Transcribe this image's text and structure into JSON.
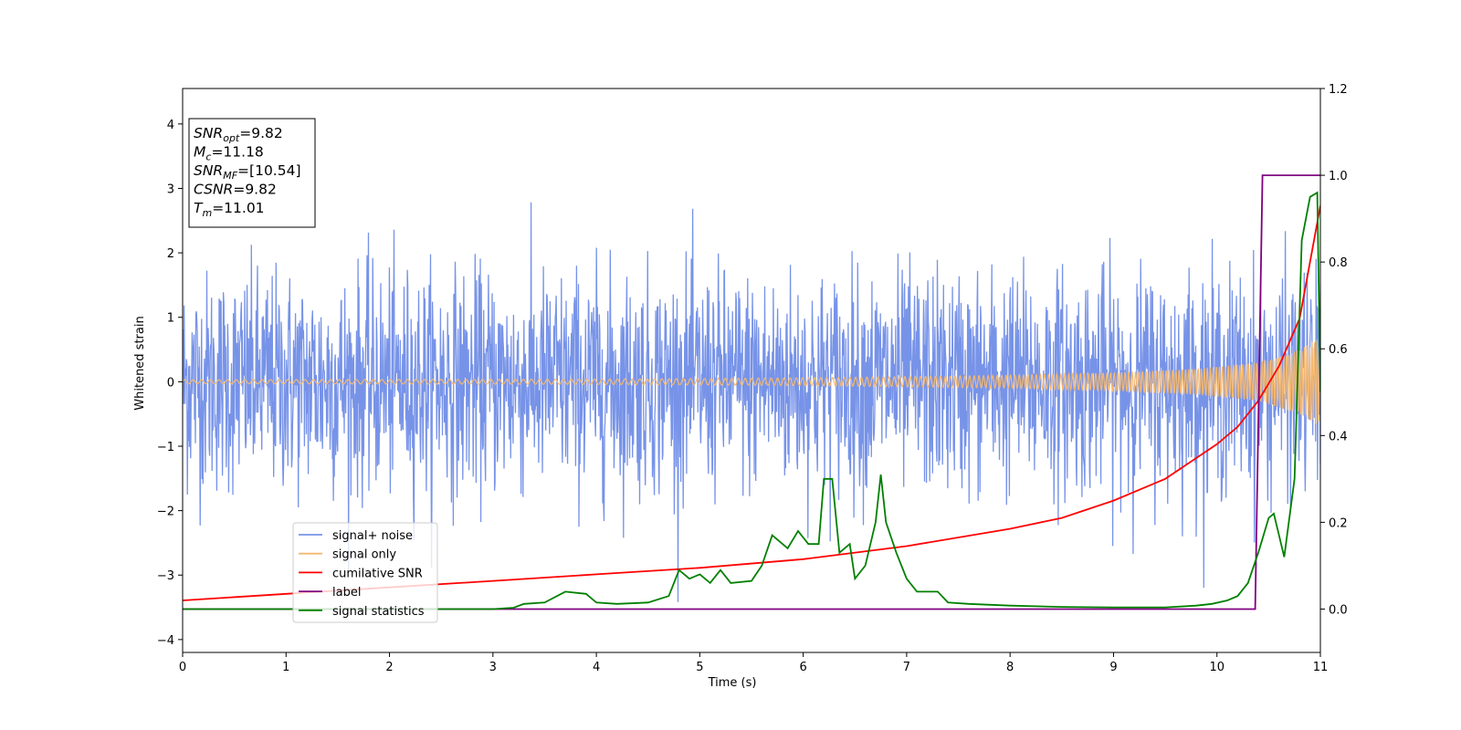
{
  "chart_data": {
    "type": "line",
    "title": "",
    "xlabel": "Time (s)",
    "ylabel": "Whitened strain",
    "y2label": "",
    "xlim": [
      0,
      11
    ],
    "ylim": [
      -4.2,
      4.55
    ],
    "y2lim": [
      -0.1,
      1.2
    ],
    "xticks": [
      "0",
      "1",
      "2",
      "3",
      "4",
      "5",
      "6",
      "7",
      "8",
      "9",
      "10",
      "11"
    ],
    "yticks": [
      "−4",
      "−3",
      "−2",
      "−1",
      "0",
      "1",
      "2",
      "3",
      "4"
    ],
    "y2ticks": [
      "0.0",
      "0.2",
      "0.4",
      "0.6",
      "0.8",
      "1.0",
      "1.2"
    ],
    "grid": false,
    "legend_position": "lower-left",
    "annotation": {
      "lines": [
        {
          "base": "SNR",
          "sub": "opt",
          "value": "=9.82"
        },
        {
          "base": "M",
          "sub": "c",
          "value": "=11.18"
        },
        {
          "base": "SNR",
          "sub": "MF",
          "value": "=[10.54]"
        },
        {
          "base": "CSNR",
          "sub": "",
          "value": "=9.82"
        },
        {
          "base": "T",
          "sub": "m",
          "value": "=11.01"
        }
      ]
    },
    "series": [
      {
        "name": "signal+ noise",
        "color": "#7793e8",
        "axis": "left",
        "style": "noise",
        "sigma": 0.85,
        "points": [
          [
            0,
            0
          ],
          [
            11,
            0
          ]
        ]
      },
      {
        "name": "signal only",
        "color": "#f5b870",
        "axis": "left",
        "style": "chirp",
        "envelope": [
          [
            0,
            0.03
          ],
          [
            4,
            0.04
          ],
          [
            6,
            0.06
          ],
          [
            8,
            0.1
          ],
          [
            9,
            0.14
          ],
          [
            9.8,
            0.2
          ],
          [
            10.4,
            0.3
          ],
          [
            10.8,
            0.5
          ],
          [
            11,
            0.7
          ]
        ],
        "points": [
          [
            0,
            0
          ],
          [
            11,
            0
          ]
        ]
      },
      {
        "name": "cumilative SNR",
        "color": "#ff0000",
        "axis": "right",
        "points": [
          [
            0,
            0.02
          ],
          [
            1,
            0.035
          ],
          [
            2,
            0.05
          ],
          [
            3,
            0.065
          ],
          [
            4,
            0.08
          ],
          [
            5,
            0.095
          ],
          [
            6,
            0.115
          ],
          [
            7,
            0.145
          ],
          [
            8,
            0.185
          ],
          [
            8.5,
            0.21
          ],
          [
            9,
            0.25
          ],
          [
            9.5,
            0.3
          ],
          [
            10,
            0.38
          ],
          [
            10.2,
            0.42
          ],
          [
            10.4,
            0.48
          ],
          [
            10.6,
            0.56
          ],
          [
            10.8,
            0.67
          ],
          [
            11,
            0.93
          ]
        ]
      },
      {
        "name": "label",
        "color": "#800080",
        "axis": "right",
        "points": [
          [
            0,
            0
          ],
          [
            10.37,
            0
          ],
          [
            10.44,
            1.0
          ],
          [
            11,
            1.0
          ]
        ]
      },
      {
        "name": "signal statistics",
        "color": "#008000",
        "axis": "right",
        "points": [
          [
            0,
            0
          ],
          [
            1.5,
            0
          ],
          [
            3,
            0
          ],
          [
            3.2,
            0.003
          ],
          [
            3.3,
            0.012
          ],
          [
            3.5,
            0.015
          ],
          [
            3.7,
            0.04
          ],
          [
            3.9,
            0.035
          ],
          [
            4.0,
            0.015
          ],
          [
            4.2,
            0.012
          ],
          [
            4.5,
            0.015
          ],
          [
            4.7,
            0.03
          ],
          [
            4.8,
            0.09
          ],
          [
            4.9,
            0.07
          ],
          [
            5.0,
            0.08
          ],
          [
            5.1,
            0.06
          ],
          [
            5.2,
            0.09
          ],
          [
            5.3,
            0.06
          ],
          [
            5.5,
            0.065
          ],
          [
            5.6,
            0.1
          ],
          [
            5.7,
            0.17
          ],
          [
            5.85,
            0.14
          ],
          [
            5.95,
            0.18
          ],
          [
            6.05,
            0.15
          ],
          [
            6.15,
            0.15
          ],
          [
            6.2,
            0.3
          ],
          [
            6.28,
            0.3
          ],
          [
            6.35,
            0.13
          ],
          [
            6.45,
            0.15
          ],
          [
            6.5,
            0.07
          ],
          [
            6.6,
            0.1
          ],
          [
            6.7,
            0.2
          ],
          [
            6.75,
            0.31
          ],
          [
            6.8,
            0.2
          ],
          [
            6.9,
            0.13
          ],
          [
            7.0,
            0.07
          ],
          [
            7.1,
            0.04
          ],
          [
            7.3,
            0.04
          ],
          [
            7.4,
            0.015
          ],
          [
            7.6,
            0.012
          ],
          [
            8,
            0.008
          ],
          [
            8.5,
            0.005
          ],
          [
            9,
            0.004
          ],
          [
            9.5,
            0.004
          ],
          [
            9.8,
            0.008
          ],
          [
            9.95,
            0.012
          ],
          [
            10.1,
            0.02
          ],
          [
            10.2,
            0.03
          ],
          [
            10.3,
            0.06
          ],
          [
            10.4,
            0.13
          ],
          [
            10.5,
            0.21
          ],
          [
            10.55,
            0.22
          ],
          [
            10.6,
            0.17
          ],
          [
            10.65,
            0.12
          ],
          [
            10.75,
            0.3
          ],
          [
            10.82,
            0.85
          ],
          [
            10.9,
            0.95
          ],
          [
            10.97,
            0.96
          ],
          [
            11,
            0.5
          ]
        ]
      }
    ]
  }
}
